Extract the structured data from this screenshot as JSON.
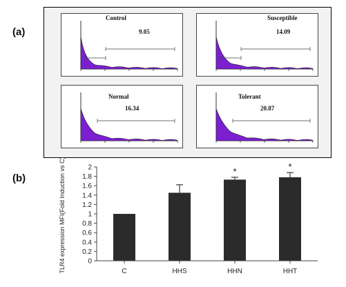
{
  "panel_labels": {
    "a": "(a)",
    "b": "(b)"
  },
  "histograms": [
    {
      "title": "Control",
      "value": "9.05"
    },
    {
      "title": "Susceptible",
      "value": "14.09"
    },
    {
      "title": "Normal",
      "value": "16.34"
    },
    {
      "title": "Tolerant",
      "value": "20.87"
    }
  ],
  "colors": {
    "histogram_fill": "#7b1fd1",
    "bar_fill": "#2b2b2b"
  },
  "chart_data": {
    "type": "bar",
    "categories": [
      "C",
      "HHS",
      "HHN",
      "HHT"
    ],
    "values": [
      1.0,
      1.45,
      1.73,
      1.78
    ],
    "errors": [
      0,
      0.17,
      0.05,
      0.1
    ],
    "significance": [
      "",
      "",
      "*",
      "*"
    ],
    "ylabel": "TLR4 expression MFI(Fold Induction vs C)",
    "ylim": [
      0,
      2
    ],
    "yticks": [
      "0",
      "0.2",
      "0.4",
      "0.6",
      "0.8",
      "1",
      "1.2",
      "1.4",
      "1.6",
      "1.8",
      "2"
    ],
    "grid": false
  }
}
